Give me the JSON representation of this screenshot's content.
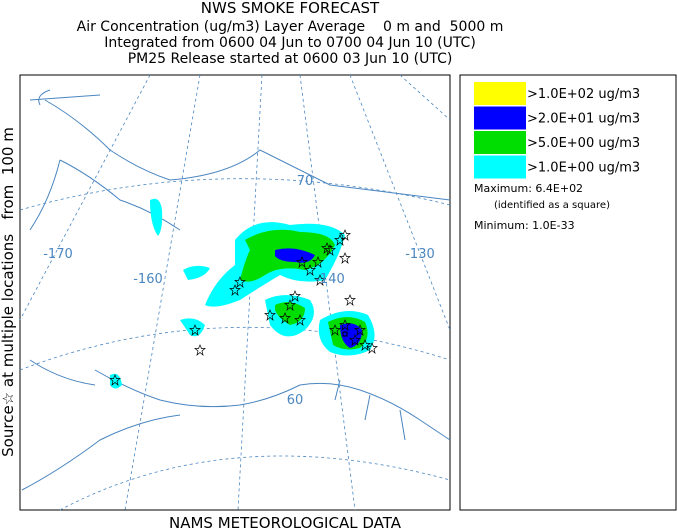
{
  "header": {
    "title": "NWS SMOKE FORECAST",
    "lines": [
      "Air Concentration (ug/m3) Layer Average    0 m and  5000 m",
      "Integrated from 0600 04 Jun to 0700 04 Jun 10 (UTC)",
      "PM25 Release started at 0600 03 Jun 10 (UTC)"
    ]
  },
  "side_label": "Source☆ at multiple locations   from  100 m",
  "footer": "NAMS METEOROLOGICAL DATA",
  "legend": {
    "items": [
      {
        "label": ">1.0E+02 ug/m3",
        "color": "#ffff00"
      },
      {
        "label": ">2.0E+01 ug/m3",
        "color": "#0000ff"
      },
      {
        "label": ">5.0E+00 ug/m3",
        "color": "#00dd00"
      },
      {
        "label": ">1.0E+00 ug/m3",
        "color": "#00ffff"
      }
    ],
    "maximum": "Maximum: 6.4E+02",
    "maximum_note": "(identified as a square)",
    "minimum": "Minimum: 1.0E-33"
  },
  "map": {
    "grid_labels": [
      "-170",
      "-160",
      "-140",
      "-130",
      "70",
      "60"
    ]
  }
}
